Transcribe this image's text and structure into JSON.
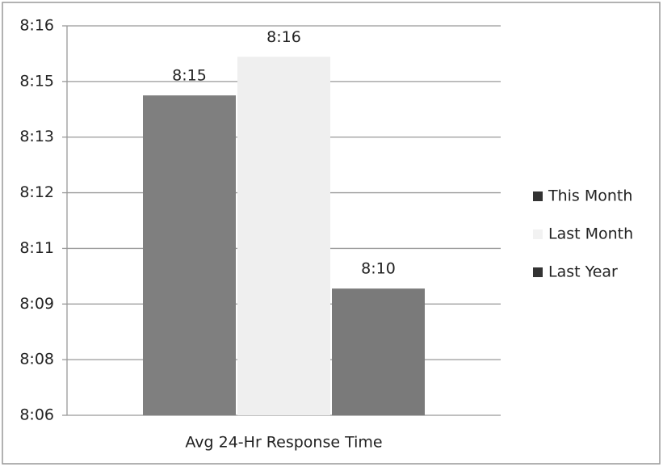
{
  "chart_data": {
    "type": "bar",
    "categories": [
      "Avg 24-Hr Response Time"
    ],
    "series": [
      {
        "name": "This Month",
        "color": "#7f7f7f",
        "values": [
          15
        ],
        "value_labels": [
          "8:15"
        ]
      },
      {
        "name": "Last Month",
        "color": "#efefef",
        "values": [
          16
        ],
        "value_labels": [
          "8:16"
        ]
      },
      {
        "name": "Last Year",
        "color": "#7a7a7a",
        "values": [
          10
        ],
        "value_labels": [
          "8:10"
        ]
      }
    ],
    "ylim": [
      6.72,
      16.8
    ],
    "yticks": [
      {
        "value": 6.72,
        "label": "8:06"
      },
      {
        "value": 8.16,
        "label": "8:08"
      },
      {
        "value": 9.6,
        "label": "8:09"
      },
      {
        "value": 11.04,
        "label": "8:11"
      },
      {
        "value": 12.48,
        "label": "8:12"
      },
      {
        "value": 13.92,
        "label": "8:13"
      },
      {
        "value": 15.36,
        "label": "8:15"
      },
      {
        "value": 16.8,
        "label": "8:16"
      }
    ],
    "grid": true,
    "legend": "right"
  }
}
